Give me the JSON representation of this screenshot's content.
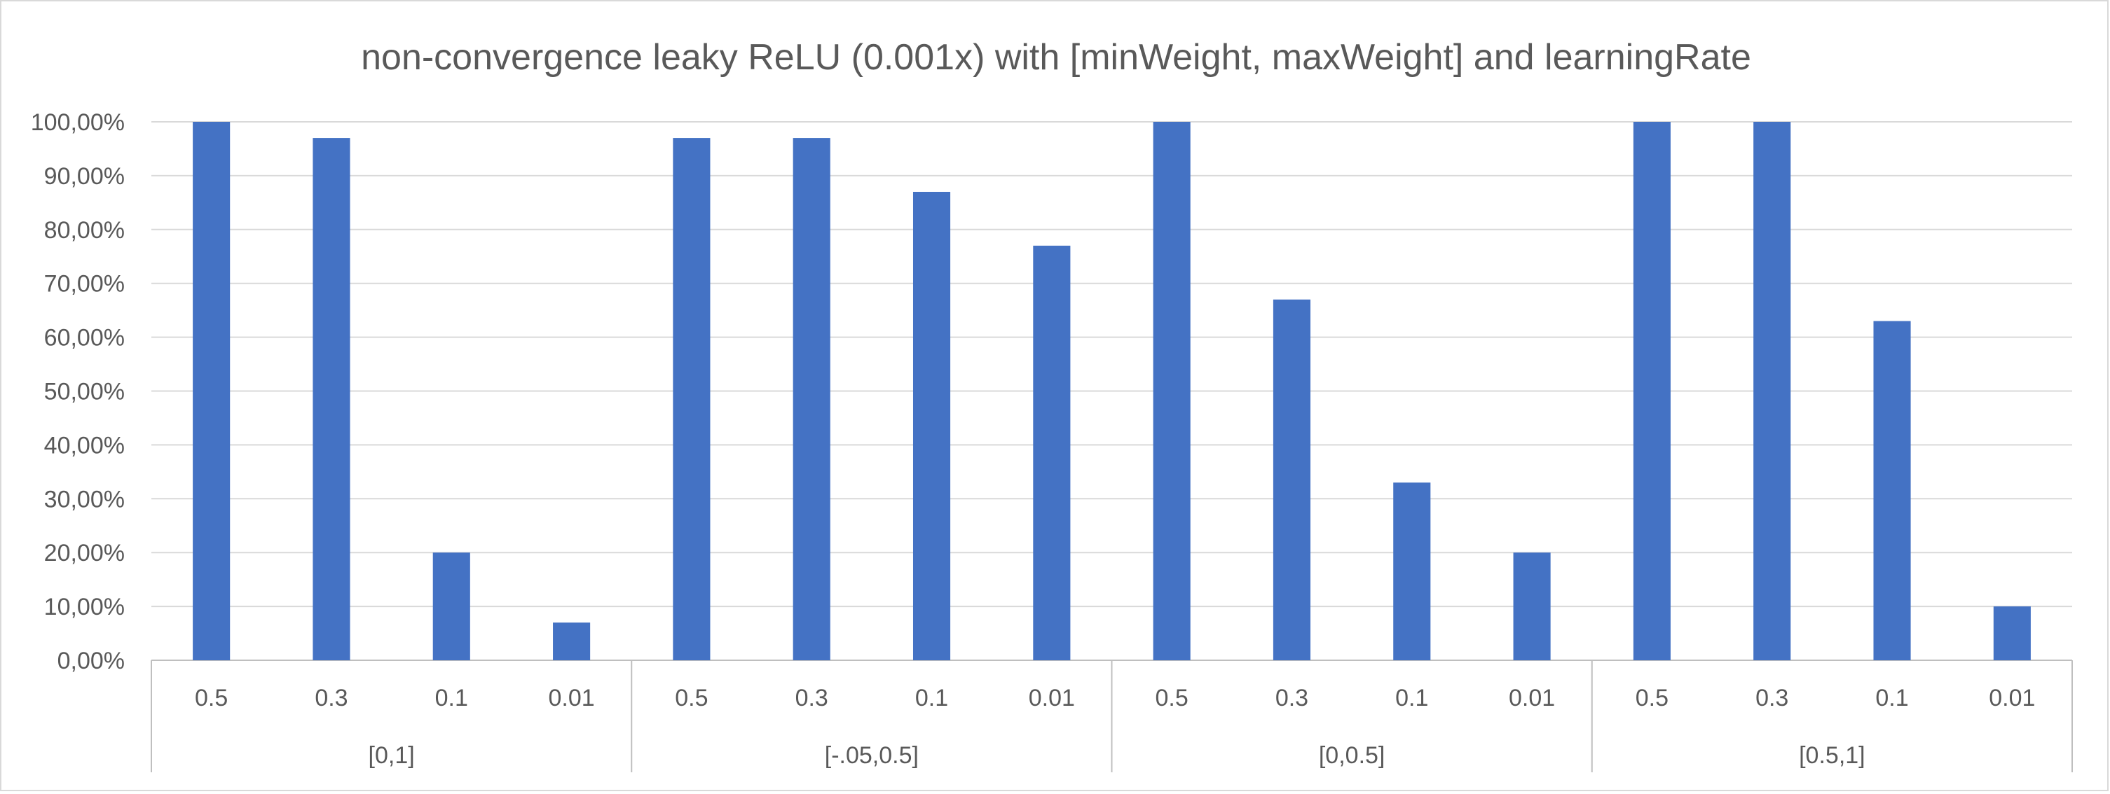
{
  "chart_data": {
    "type": "bar",
    "title": "non-convergence leaky ReLU (0.001x) with [minWeight, maxWeight] and learningRate",
    "xlabel": "",
    "ylabel": "",
    "ylim": [
      0,
      1
    ],
    "y_ticks": [
      "0,00%",
      "10,00%",
      "20,00%",
      "30,00%",
      "40,00%",
      "50,00%",
      "60,00%",
      "70,00%",
      "80,00%",
      "90,00%",
      "100,00%"
    ],
    "grid": true,
    "legend": "none",
    "bar_color": "#4472c4",
    "groups": [
      {
        "label": "[0,1]",
        "categories": [
          "0.5",
          "0.3",
          "0.1",
          "0.01"
        ],
        "values": [
          1.0,
          0.97,
          0.2,
          0.07
        ]
      },
      {
        "label": "[-.05,0.5]",
        "categories": [
          "0.5",
          "0.3",
          "0.1",
          "0.01"
        ],
        "values": [
          0.97,
          0.97,
          0.87,
          0.77
        ]
      },
      {
        "label": "[0,0.5]",
        "categories": [
          "0.5",
          "0.3",
          "0.1",
          "0.01"
        ],
        "values": [
          1.0,
          0.67,
          0.33,
          0.2
        ]
      },
      {
        "label": "[0.5,1]",
        "categories": [
          "0.5",
          "0.3",
          "0.1",
          "0.01"
        ],
        "values": [
          1.0,
          1.0,
          0.63,
          0.1
        ]
      }
    ]
  }
}
